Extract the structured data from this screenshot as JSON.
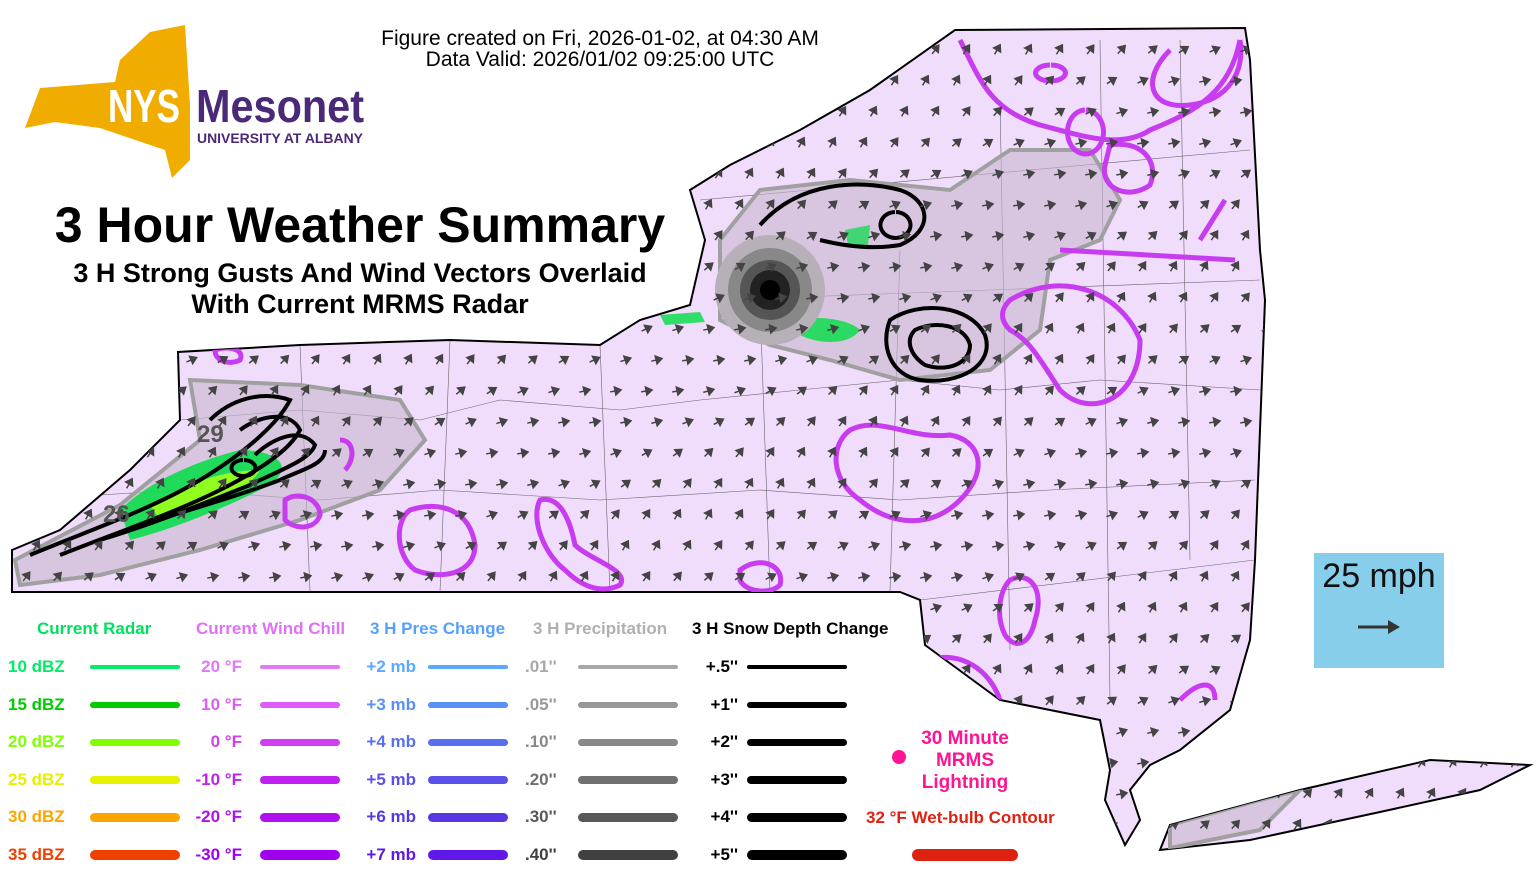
{
  "header": {
    "created": "Figure created on Fri, 2026-01-02, at 04:30 AM",
    "valid": "Data Valid: 2026/01/02 09:25:00 UTC"
  },
  "logo": {
    "nys": "NYS",
    "mesonet": "Mesonet",
    "university": "UNIVERSITY AT ALBANY"
  },
  "title": {
    "main": "3 Hour Weather Summary",
    "sub1": "3 H Strong Gusts And Wind Vectors Overlaid",
    "sub2": "With Current MRMS Radar"
  },
  "map": {
    "contour_labels": [
      "29",
      "26"
    ],
    "colors": {
      "land": "#f0dcfb",
      "shaded": "#dcc8e6",
      "windchill": "#c83cf0",
      "snow": "#000000",
      "precip": "#a0a0a0"
    }
  },
  "scale": {
    "label": "25 mph"
  },
  "legend": {
    "radar": {
      "title": "Current Radar",
      "color": "#00e060",
      "items": [
        {
          "label": "10 dBZ",
          "color": "#00ee66"
        },
        {
          "label": "15 dBZ",
          "color": "#00cc00"
        },
        {
          "label": "20 dBZ",
          "color": "#80ff00"
        },
        {
          "label": "25 dBZ",
          "color": "#e6f000"
        },
        {
          "label": "30 dBZ",
          "color": "#ffa500"
        },
        {
          "label": "35 dBZ",
          "color": "#f04000"
        }
      ]
    },
    "windchill": {
      "title": "Current Wind Chill",
      "color": "#e070f8",
      "items": [
        {
          "label": "20 °F",
          "color": "#e078f8"
        },
        {
          "label": "10 °F",
          "color": "#dc5cf8"
        },
        {
          "label": "0 °F",
          "color": "#d040f0"
        },
        {
          "label": "-10 °F",
          "color": "#c020f0"
        },
        {
          "label": "-20 °F",
          "color": "#b010f0"
        },
        {
          "label": "-30 °F",
          "color": "#a000f0"
        }
      ]
    },
    "pres": {
      "title": "3 H Pres Change",
      "color": "#55a0ff",
      "items": [
        {
          "label": "+2 mb",
          "color": "#5aa8ff"
        },
        {
          "label": "+3 mb",
          "color": "#5890f8"
        },
        {
          "label": "+4 mb",
          "color": "#5870f0"
        },
        {
          "label": "+5 mb",
          "color": "#5850e8"
        },
        {
          "label": "+6 mb",
          "color": "#5838e0"
        },
        {
          "label": "+7 mb",
          "color": "#6018e8"
        }
      ]
    },
    "precip": {
      "title": "3 H Precipitation",
      "color": "#b0b0b0",
      "items": [
        {
          "label": ".01''",
          "color": "#a8a8a8"
        },
        {
          "label": ".05''",
          "color": "#989898"
        },
        {
          "label": ".10''",
          "color": "#888888"
        },
        {
          "label": ".20''",
          "color": "#707070"
        },
        {
          "label": ".30''",
          "color": "#585858"
        },
        {
          "label": ".40''",
          "color": "#404040"
        }
      ]
    },
    "snow": {
      "title": "3 H Snow Depth Change",
      "color": "#000000",
      "items": [
        {
          "label": "+.5''",
          "color": "#000"
        },
        {
          "label": "+1''",
          "color": "#000"
        },
        {
          "label": "+2''",
          "color": "#000"
        },
        {
          "label": "+3''",
          "color": "#000"
        },
        {
          "label": "+4''",
          "color": "#000"
        },
        {
          "label": "+5''",
          "color": "#000"
        }
      ]
    },
    "lightning": {
      "label1": "30 Minute",
      "label2": "MRMS",
      "label3": "Lightning",
      "color": "#ff1493"
    },
    "wetbulb": {
      "label": "32 °F Wet-bulb Contour",
      "color": "#dd2211"
    }
  }
}
